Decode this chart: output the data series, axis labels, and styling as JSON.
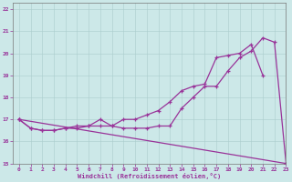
{
  "xlabel": "Windchill (Refroidissement éolien,°C)",
  "xlim": [
    -0.5,
    23
  ],
  "ylim": [
    15,
    22.3
  ],
  "yticks": [
    15,
    16,
    17,
    18,
    19,
    20,
    21,
    22
  ],
  "xticks": [
    0,
    1,
    2,
    3,
    4,
    5,
    6,
    7,
    8,
    9,
    10,
    11,
    12,
    13,
    14,
    15,
    16,
    17,
    18,
    19,
    20,
    21,
    22,
    23
  ],
  "bg_color": "#cce8e8",
  "line_color": "#993399",
  "line1_x": [
    0,
    1,
    2,
    3,
    4,
    5,
    6,
    7,
    8,
    9,
    10,
    11,
    12,
    13,
    14,
    15,
    16,
    17,
    18,
    19,
    20,
    21,
    22,
    23
  ],
  "line1_y": [
    17.0,
    16.6,
    16.5,
    16.5,
    16.6,
    16.6,
    16.7,
    17.0,
    16.7,
    17.0,
    17.0,
    17.2,
    17.4,
    17.8,
    18.3,
    18.5,
    18.6,
    19.8,
    19.9,
    20.0,
    20.4,
    19.0,
    null,
    null
  ],
  "line2_x": [
    0,
    1,
    2,
    3,
    4,
    5,
    6,
    7,
    8,
    9,
    10,
    11,
    12,
    13,
    14,
    15,
    16,
    17,
    18,
    19,
    20,
    21,
    22,
    23
  ],
  "line2_y": [
    17.0,
    16.6,
    16.5,
    16.5,
    16.6,
    16.7,
    16.7,
    16.7,
    16.7,
    16.6,
    16.6,
    16.6,
    16.7,
    16.7,
    17.5,
    18.0,
    18.5,
    18.5,
    19.2,
    19.8,
    20.1,
    20.7,
    20.5,
    15.0
  ],
  "line3_x": [
    0,
    23
  ],
  "line3_y": [
    17.0,
    15.0
  ]
}
